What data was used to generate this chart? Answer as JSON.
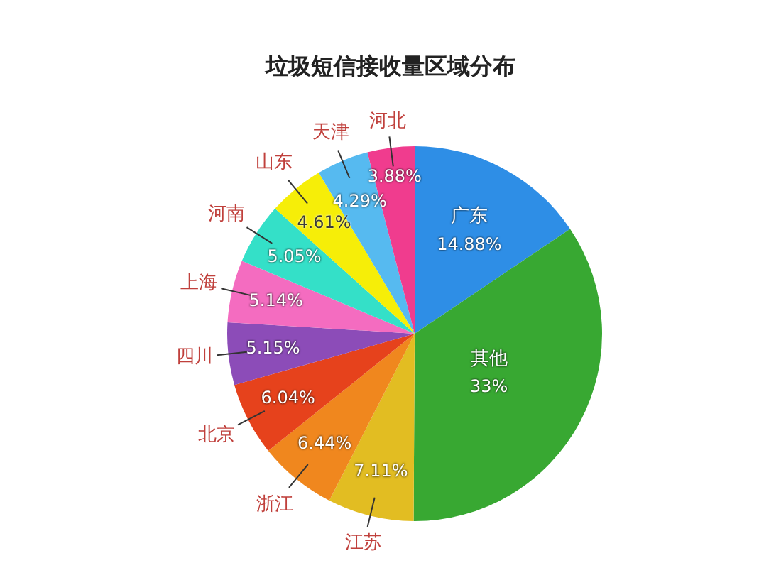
{
  "chart_data": {
    "type": "pie",
    "title": "垃圾短信接收量区域分布",
    "categories": [
      "广东",
      "其他",
      "江苏",
      "浙江",
      "北京",
      "四川",
      "上海",
      "河南",
      "山东",
      "天津",
      "河北"
    ],
    "values": [
      14.88,
      33,
      7.11,
      6.44,
      6.04,
      5.15,
      5.14,
      5.05,
      4.61,
      4.29,
      3.88
    ],
    "value_labels": [
      "14.88%",
      "33%",
      "7.11%",
      "6.44%",
      "6.04%",
      "5.15%",
      "5.14%",
      "5.05%",
      "4.61%",
      "4.29%",
      "3.88%"
    ],
    "colors": [
      "#2e8ee6",
      "#38a832",
      "#e2bd22",
      "#f0871e",
      "#e6421c",
      "#8c4cb8",
      "#f46cc0",
      "#34e0c8",
      "#f6ee08",
      "#56baf0",
      "#f03c8e"
    ]
  }
}
